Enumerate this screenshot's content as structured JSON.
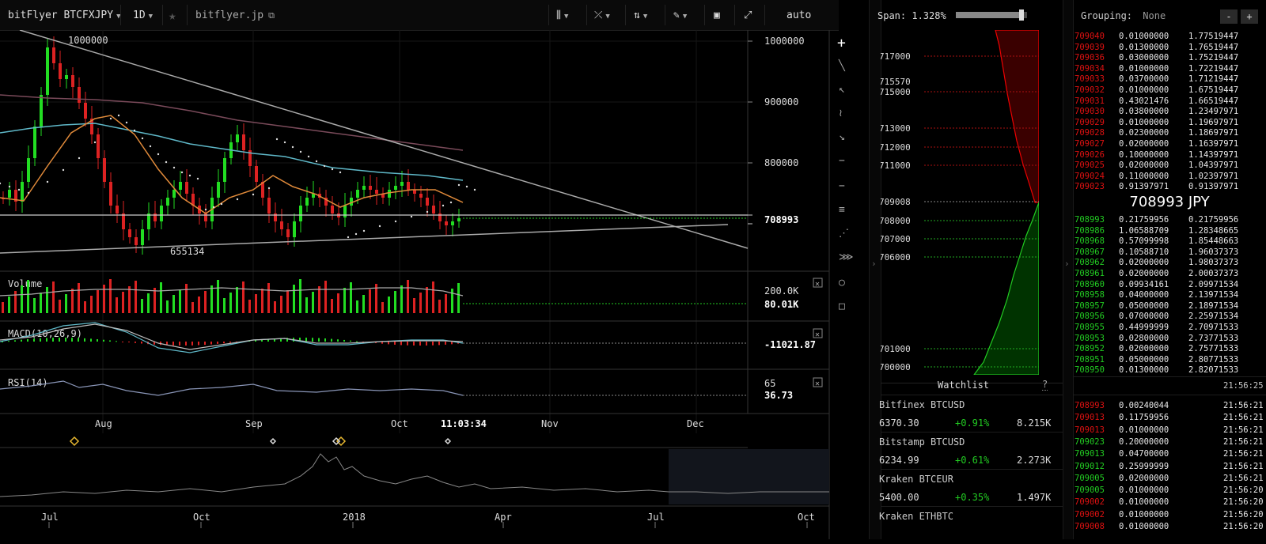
{
  "toolbar": {
    "symbol": "bitFlyer BTCFXJPY",
    "interval": "1D",
    "source": "bitflyer.jp",
    "scale_mode": "auto"
  },
  "price_axis": {
    "ticks": [
      "1000000",
      "900000",
      "800000"
    ],
    "current_price": "708993",
    "high_label": "1000000",
    "low_label": "655134"
  },
  "panes": {
    "volume": {
      "label": "Volume",
      "ticks": [
        "200.0K"
      ],
      "current": "80.01K"
    },
    "macd": {
      "label": "MACD(10,26,9)",
      "current": "-11021.87"
    },
    "rsi": {
      "label": "RSI(14)",
      "ticks": [
        "65"
      ],
      "current": "36.73"
    }
  },
  "time_axis": {
    "labels": [
      "Aug",
      "Sep",
      "Oct",
      "Nov",
      "Dec"
    ],
    "cursor_time": "11:03:34"
  },
  "navigator": {
    "labels": [
      "Jul",
      "Oct",
      "2018",
      "Apr",
      "Jul",
      "Oct"
    ]
  },
  "left_tools": [
    "plus-icon",
    "line-icon",
    "arrow-icon",
    "curve-icon",
    "arrow-down-icon",
    "dash-icon",
    "dash-icon",
    "lines-icon",
    "fan-icon",
    "pattern-icon",
    "circle-icon",
    "square-icon"
  ],
  "depth": {
    "span_label": "Span: 1.328%",
    "span_level": 0.92,
    "ticks": [
      "717000",
      "715570",
      "715000",
      "713000",
      "712000",
      "711000",
      "709008",
      "708000",
      "707000",
      "706000",
      "701000",
      "700000"
    ]
  },
  "book": {
    "grouping_label": "Grouping:",
    "grouping_value": "None",
    "minus": "-",
    "plus": "+",
    "mid_price": "708993  JPY",
    "asks": [
      [
        "709040",
        "0.01000000",
        "1.77519447"
      ],
      [
        "709039",
        "0.01300000",
        "1.76519447"
      ],
      [
        "709036",
        "0.03000000",
        "1.75219447"
      ],
      [
        "709034",
        "0.01000000",
        "1.72219447"
      ],
      [
        "709033",
        "0.03700000",
        "1.71219447"
      ],
      [
        "709032",
        "0.01000000",
        "1.67519447"
      ],
      [
        "709031",
        "0.43021476",
        "1.66519447"
      ],
      [
        "709030",
        "0.03800000",
        "1.23497971"
      ],
      [
        "709029",
        "0.01000000",
        "1.19697971"
      ],
      [
        "709028",
        "0.02300000",
        "1.18697971"
      ],
      [
        "709027",
        "0.02000000",
        "1.16397971"
      ],
      [
        "709026",
        "0.10000000",
        "1.14397971"
      ],
      [
        "709025",
        "0.02000000",
        "1.04397971"
      ],
      [
        "709024",
        "0.11000000",
        "1.02397971"
      ],
      [
        "709023",
        "0.91397971",
        "0.91397971"
      ]
    ],
    "bids": [
      [
        "708993",
        "0.21759956",
        "0.21759956"
      ],
      [
        "708986",
        "1.06588709",
        "1.28348665"
      ],
      [
        "708968",
        "0.57099998",
        "1.85448663"
      ],
      [
        "708967",
        "0.10588710",
        "1.96037373"
      ],
      [
        "708962",
        "0.02000000",
        "1.98037373"
      ],
      [
        "708961",
        "0.02000000",
        "2.00037373"
      ],
      [
        "708960",
        "0.09934161",
        "2.09971534"
      ],
      [
        "708958",
        "0.04000000",
        "2.13971534"
      ],
      [
        "708957",
        "0.05000000",
        "2.18971534"
      ],
      [
        "708956",
        "0.07000000",
        "2.25971534"
      ],
      [
        "708955",
        "0.44999999",
        "2.70971533"
      ],
      [
        "708953",
        "0.02800000",
        "2.73771533"
      ],
      [
        "708952",
        "0.02000000",
        "2.75771533"
      ],
      [
        "708951",
        "0.05000000",
        "2.80771533"
      ],
      [
        "708950",
        "0.01300000",
        "2.82071533"
      ]
    ],
    "clock": "21:56:25",
    "trades": [
      [
        "708993",
        "0.00240044",
        "21:56:21",
        "red"
      ],
      [
        "709013",
        "0.11759956",
        "21:56:21",
        "red"
      ],
      [
        "709013",
        "0.01000000",
        "21:56:21",
        "red"
      ],
      [
        "709023",
        "0.20000000",
        "21:56:21",
        "green"
      ],
      [
        "709013",
        "0.04700000",
        "21:56:21",
        "green"
      ],
      [
        "709012",
        "0.25999999",
        "21:56:21",
        "green"
      ],
      [
        "709005",
        "0.02000000",
        "21:56:21",
        "green"
      ],
      [
        "709005",
        "0.01000000",
        "21:56:20",
        "green"
      ],
      [
        "709002",
        "0.01000000",
        "21:56:20",
        "red"
      ],
      [
        "709002",
        "0.01000000",
        "21:56:20",
        "red"
      ],
      [
        "709008",
        "0.01000000",
        "21:56:20",
        "red"
      ]
    ]
  },
  "watchlist": {
    "title": "Watchlist",
    "help": "?",
    "items": [
      {
        "name": "Bitfinex BTCUSD",
        "price": "6370.30",
        "change": "+0.91%",
        "volume": "8.215K"
      },
      {
        "name": "Bitstamp BTCUSD",
        "price": "6234.99",
        "change": "+0.61%",
        "volume": "2.273K"
      },
      {
        "name": "Kraken BTCEUR",
        "price": "5400.00",
        "change": "+0.35%",
        "volume": "1.497K"
      },
      {
        "name": "Kraken ETHBTC",
        "price": "",
        "change": "",
        "volume": ""
      }
    ]
  },
  "colors": {
    "up": "#22dd22",
    "down": "#dd2222",
    "accent_green": "#1c7a1c",
    "accent_red": "#8a1010"
  }
}
